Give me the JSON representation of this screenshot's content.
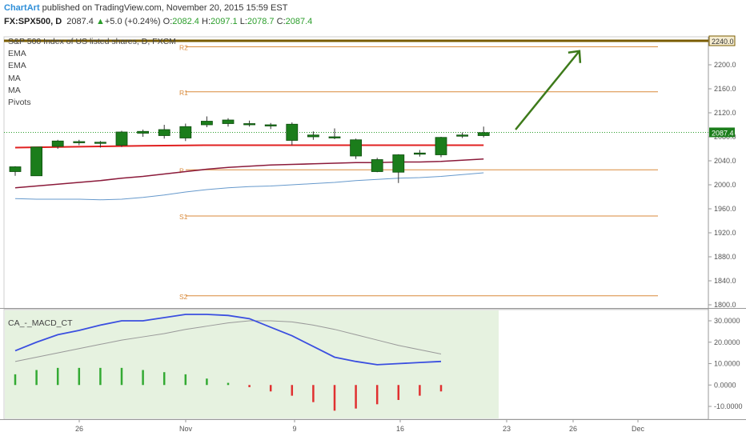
{
  "header": {
    "brand": "ChartArt",
    "published": " published on TradingView.com, November 20, 2015 15:59 EST",
    "symbol": "FX:SPX500, D",
    "last": "2087.4",
    "change_arrow": "▲",
    "change": "+5.0 (+0.24%)",
    "o_label": "O:",
    "o_val": "2082.4",
    "h_label": "H:",
    "h_val": "2097.1",
    "l_label": "L:",
    "l_val": "2078.7",
    "c_label": "C:",
    "c_val": "2087.4"
  },
  "legend": {
    "title": "S&P 500 Index of US listed shares, D, FXCM",
    "items": [
      "EMA",
      "EMA",
      "MA",
      "MA",
      "Pivots"
    ]
  },
  "macd_label": "CA_-_MACD_CT",
  "colors": {
    "up": "#1b7d1b",
    "down": "#1b7d1b",
    "ema_red": "#e02020",
    "ema_maroon": "#8b1a3a",
    "ma_blue": "#6699cc",
    "pivot": "#d98a3a",
    "resistance": "#7a5c00",
    "macd_line": "#3b4fe0",
    "signal": "#999999",
    "hist_pos": "#33aa33",
    "hist_neg": "#e03030",
    "macd_bg": "#e6f2e0",
    "arrow": "#3d7a1a"
  },
  "chart_data": [
    {
      "type": "candlestick",
      "title": "S&P 500 Index of US listed shares, D, FXCM",
      "x_tick_labels": [
        "26",
        "Nov",
        "9",
        "16",
        "23",
        "26",
        "Dec"
      ],
      "y_tick_labels": [
        "2240.0",
        "2200.0",
        "2160.0",
        "2120.0",
        "2080.0",
        "2040.0",
        "2000.0",
        "1960.0",
        "1920.0",
        "1880.0",
        "1840.0",
        "1800.0"
      ],
      "ylim": [
        1790,
        2250
      ],
      "last_price": 2087.4,
      "candles": [
        {
          "o": 2022,
          "h": 2031,
          "l": 2015,
          "c": 2030
        },
        {
          "o": 2015,
          "h": 2063,
          "l": 2015,
          "c": 2063
        },
        {
          "o": 2064,
          "h": 2075,
          "l": 2060,
          "c": 2073
        },
        {
          "o": 2070,
          "h": 2075,
          "l": 2066,
          "c": 2072
        },
        {
          "o": 2069,
          "h": 2073,
          "l": 2062,
          "c": 2071
        },
        {
          "o": 2066,
          "h": 2090,
          "l": 2063,
          "c": 2088
        },
        {
          "o": 2086,
          "h": 2092,
          "l": 2080,
          "c": 2089
        },
        {
          "o": 2092,
          "h": 2100,
          "l": 2077,
          "c": 2082
        },
        {
          "o": 2078,
          "h": 2102,
          "l": 2073,
          "c": 2097
        },
        {
          "o": 2100,
          "h": 2114,
          "l": 2096,
          "c": 2106
        },
        {
          "o": 2108,
          "h": 2111,
          "l": 2097,
          "c": 2102
        },
        {
          "o": 2102,
          "h": 2107,
          "l": 2097,
          "c": 2100
        },
        {
          "o": 2100,
          "h": 2103,
          "l": 2093,
          "c": 2098
        },
        {
          "o": 2101,
          "h": 2104,
          "l": 2066,
          "c": 2074
        },
        {
          "o": 2083,
          "h": 2089,
          "l": 2075,
          "c": 2080
        },
        {
          "o": 2080,
          "h": 2094,
          "l": 2076,
          "c": 2078
        },
        {
          "o": 2075,
          "h": 2077,
          "l": 2043,
          "c": 2048
        },
        {
          "o": 2042,
          "h": 2045,
          "l": 2021,
          "c": 2022
        },
        {
          "o": 2021,
          "h": 2051,
          "l": 2003,
          "c": 2050
        },
        {
          "o": 2053,
          "h": 2058,
          "l": 2047,
          "c": 2051
        },
        {
          "o": 2050,
          "h": 2080,
          "l": 2046,
          "c": 2079
        },
        {
          "o": 2081,
          "h": 2087,
          "l": 2078,
          "c": 2083
        },
        {
          "o": 2082,
          "h": 2097,
          "l": 2079,
          "c": 2087
        }
      ],
      "ema_red": [
        2062,
        2062.5,
        2063,
        2063.5,
        2064,
        2064.5,
        2065,
        2065.3,
        2065.6,
        2066,
        2066,
        2066,
        2066,
        2066,
        2066,
        2066,
        2066,
        2066,
        2066,
        2066,
        2066,
        2066,
        2066
      ],
      "ema_maroon": [
        1995,
        1998,
        2001,
        2004,
        2007,
        2011,
        2014,
        2018,
        2022,
        2026,
        2029,
        2031,
        2033,
        2034,
        2035,
        2036,
        2037,
        2037,
        2038,
        2038,
        2039,
        2041,
        2043
      ],
      "ma_blue": [
        1977,
        1976,
        1976,
        1976,
        1975,
        1976,
        1979,
        1983,
        1988,
        1992,
        1995,
        1997,
        1998,
        2000,
        2002,
        2004,
        2007,
        2009,
        2011,
        2012,
        2014,
        2017,
        2020
      ],
      "pivots": [
        {
          "label": "R2",
          "value": 2230
        },
        {
          "label": "R1",
          "value": 2155
        },
        {
          "label": "P",
          "value": 2025
        },
        {
          "label": "S1",
          "value": 1948
        },
        {
          "label": "S2",
          "value": 1815
        }
      ],
      "resistance": 2240,
      "target_arrow": {
        "from_index": 23.5,
        "from": 2092,
        "to_index": 26.5,
        "to": 2223
      }
    },
    {
      "type": "macd",
      "title": "CA_-_MACD_CT",
      "y_tick_labels": [
        "30.0000",
        "20.0000",
        "10.0000",
        "0.0000",
        "-10.0000"
      ],
      "ylim": [
        -14,
        35
      ],
      "macd": [
        16,
        20,
        23.5,
        25.5,
        28,
        30,
        30,
        31.5,
        33,
        33,
        32.5,
        31,
        27,
        23,
        18,
        13,
        11,
        9.5,
        10,
        10.5,
        11
      ],
      "signal": [
        11,
        13,
        15,
        17,
        19,
        21,
        22.5,
        24,
        26,
        27.5,
        29,
        30,
        30,
        29.5,
        28,
        26,
        23.5,
        21,
        18.5,
        16.5,
        14.5
      ],
      "histogram": [
        5,
        7,
        8,
        8,
        8,
        8,
        7,
        6,
        5,
        3,
        1,
        -1,
        -3,
        -5,
        -8,
        -12,
        -11,
        -9,
        -7,
        -5,
        -3
      ]
    }
  ]
}
